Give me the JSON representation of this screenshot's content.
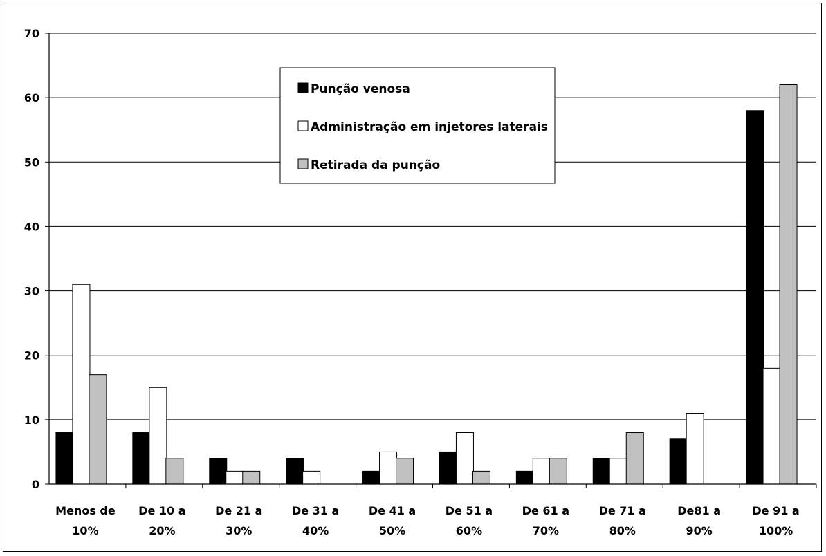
{
  "chart_data": {
    "type": "bar",
    "title": "",
    "xlabel": "",
    "ylabel": "",
    "ylim": [
      0,
      70
    ],
    "yticks": [
      0,
      10,
      20,
      30,
      40,
      50,
      60,
      70
    ],
    "grid": true,
    "legend_position": "top-center",
    "categories": [
      [
        "Menos de",
        "10%"
      ],
      [
        "De 10 a",
        "20%"
      ],
      [
        "De 21 a",
        "30%"
      ],
      [
        "De 31 a",
        "40%"
      ],
      [
        "De 41 a",
        "50%"
      ],
      [
        "De 51 a",
        "60%"
      ],
      [
        "De 61 a",
        "70%"
      ],
      [
        "De 71 a",
        "80%"
      ],
      [
        "De81 a",
        "90%"
      ],
      [
        "De 91 a",
        "100%"
      ]
    ],
    "series": [
      {
        "name": "Punção venosa",
        "color": "#000000",
        "values": [
          8,
          8,
          4,
          4,
          2,
          5,
          2,
          4,
          7,
          58
        ]
      },
      {
        "name": "Administração em injetores laterais",
        "color": "#ffffff",
        "values": [
          31,
          15,
          2,
          2,
          5,
          8,
          4,
          4,
          11,
          18
        ]
      },
      {
        "name": "Retirada da punção",
        "color": "#c0c0c0",
        "values": [
          17,
          4,
          2,
          0,
          4,
          2,
          4,
          8,
          0,
          62
        ]
      }
    ]
  }
}
